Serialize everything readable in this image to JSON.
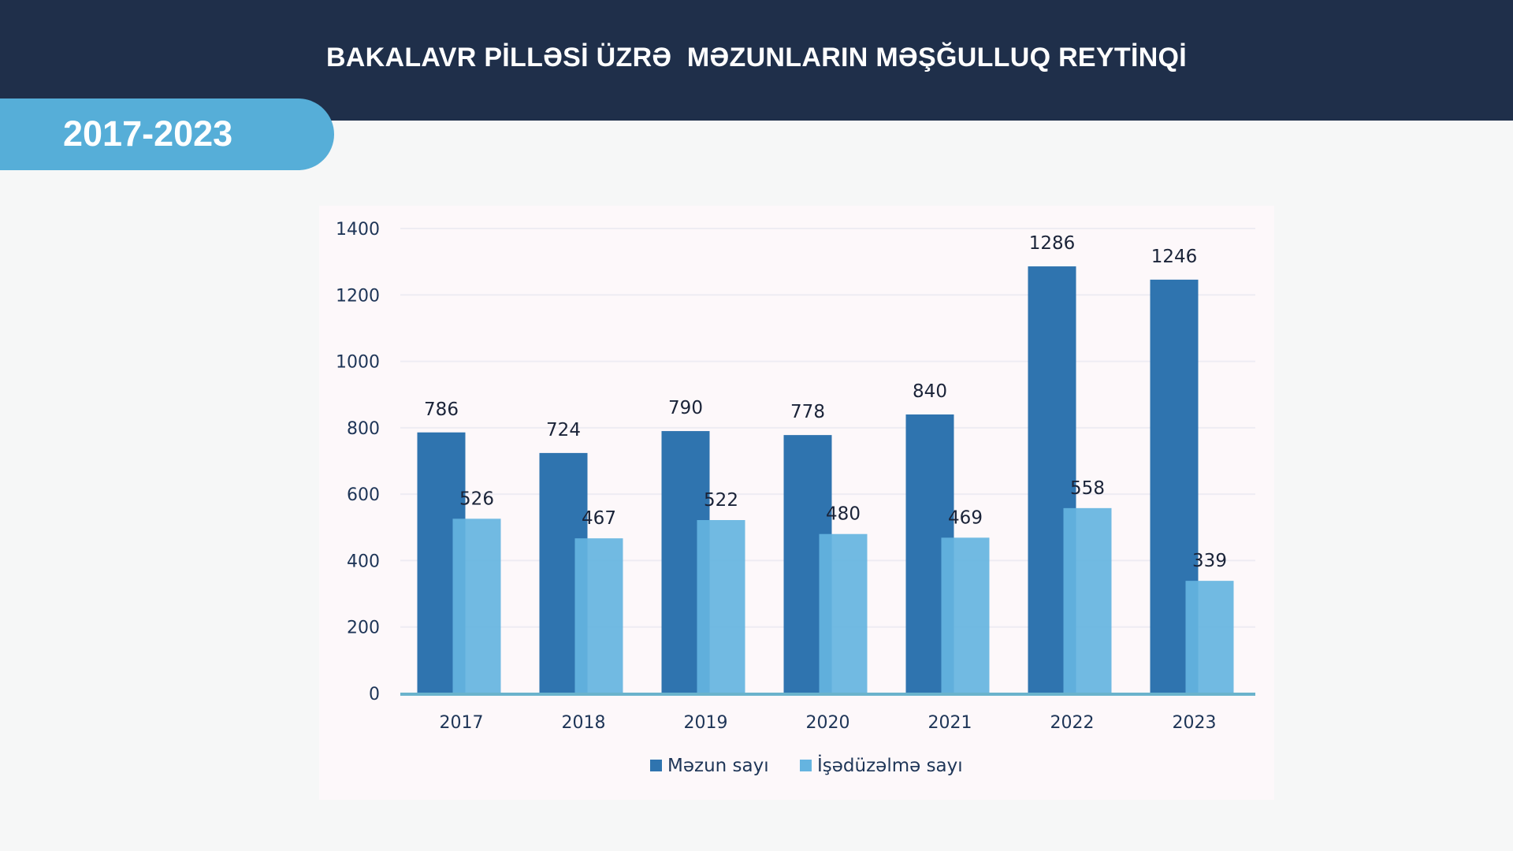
{
  "header": {
    "title": "BAKALAVR PİLLƏSİ ÜZRƏ  MƏZUNLARIN MƏŞĞULLUQ REYTİNQİ"
  },
  "period_badge": {
    "label": "2017-2023"
  },
  "colors": {
    "header_bg": "#1f2f4a",
    "badge_bg": "#56aed8",
    "series_graduates": "#2f74af",
    "series_employment": "#65b4e0",
    "axis_line": "#6ab3cc"
  },
  "chart_data": {
    "type": "bar",
    "title": "",
    "xlabel": "",
    "ylabel": "",
    "categories": [
      "2017",
      "2018",
      "2019",
      "2020",
      "2021",
      "2022",
      "2023"
    ],
    "series": [
      {
        "name": "Məzun sayı",
        "color": "#2f74af",
        "values": [
          786,
          724,
          790,
          778,
          840,
          1286,
          1246
        ]
      },
      {
        "name": "İşədüzəlmə sayı",
        "color": "#65b4e0",
        "values": [
          526,
          467,
          522,
          480,
          469,
          558,
          339
        ]
      }
    ],
    "ylim": [
      0,
      1400
    ],
    "yticks": [
      0,
      200,
      400,
      600,
      800,
      1000,
      1200,
      1400
    ],
    "grid": true,
    "legend_position": "bottom-center",
    "data_labels": true
  }
}
